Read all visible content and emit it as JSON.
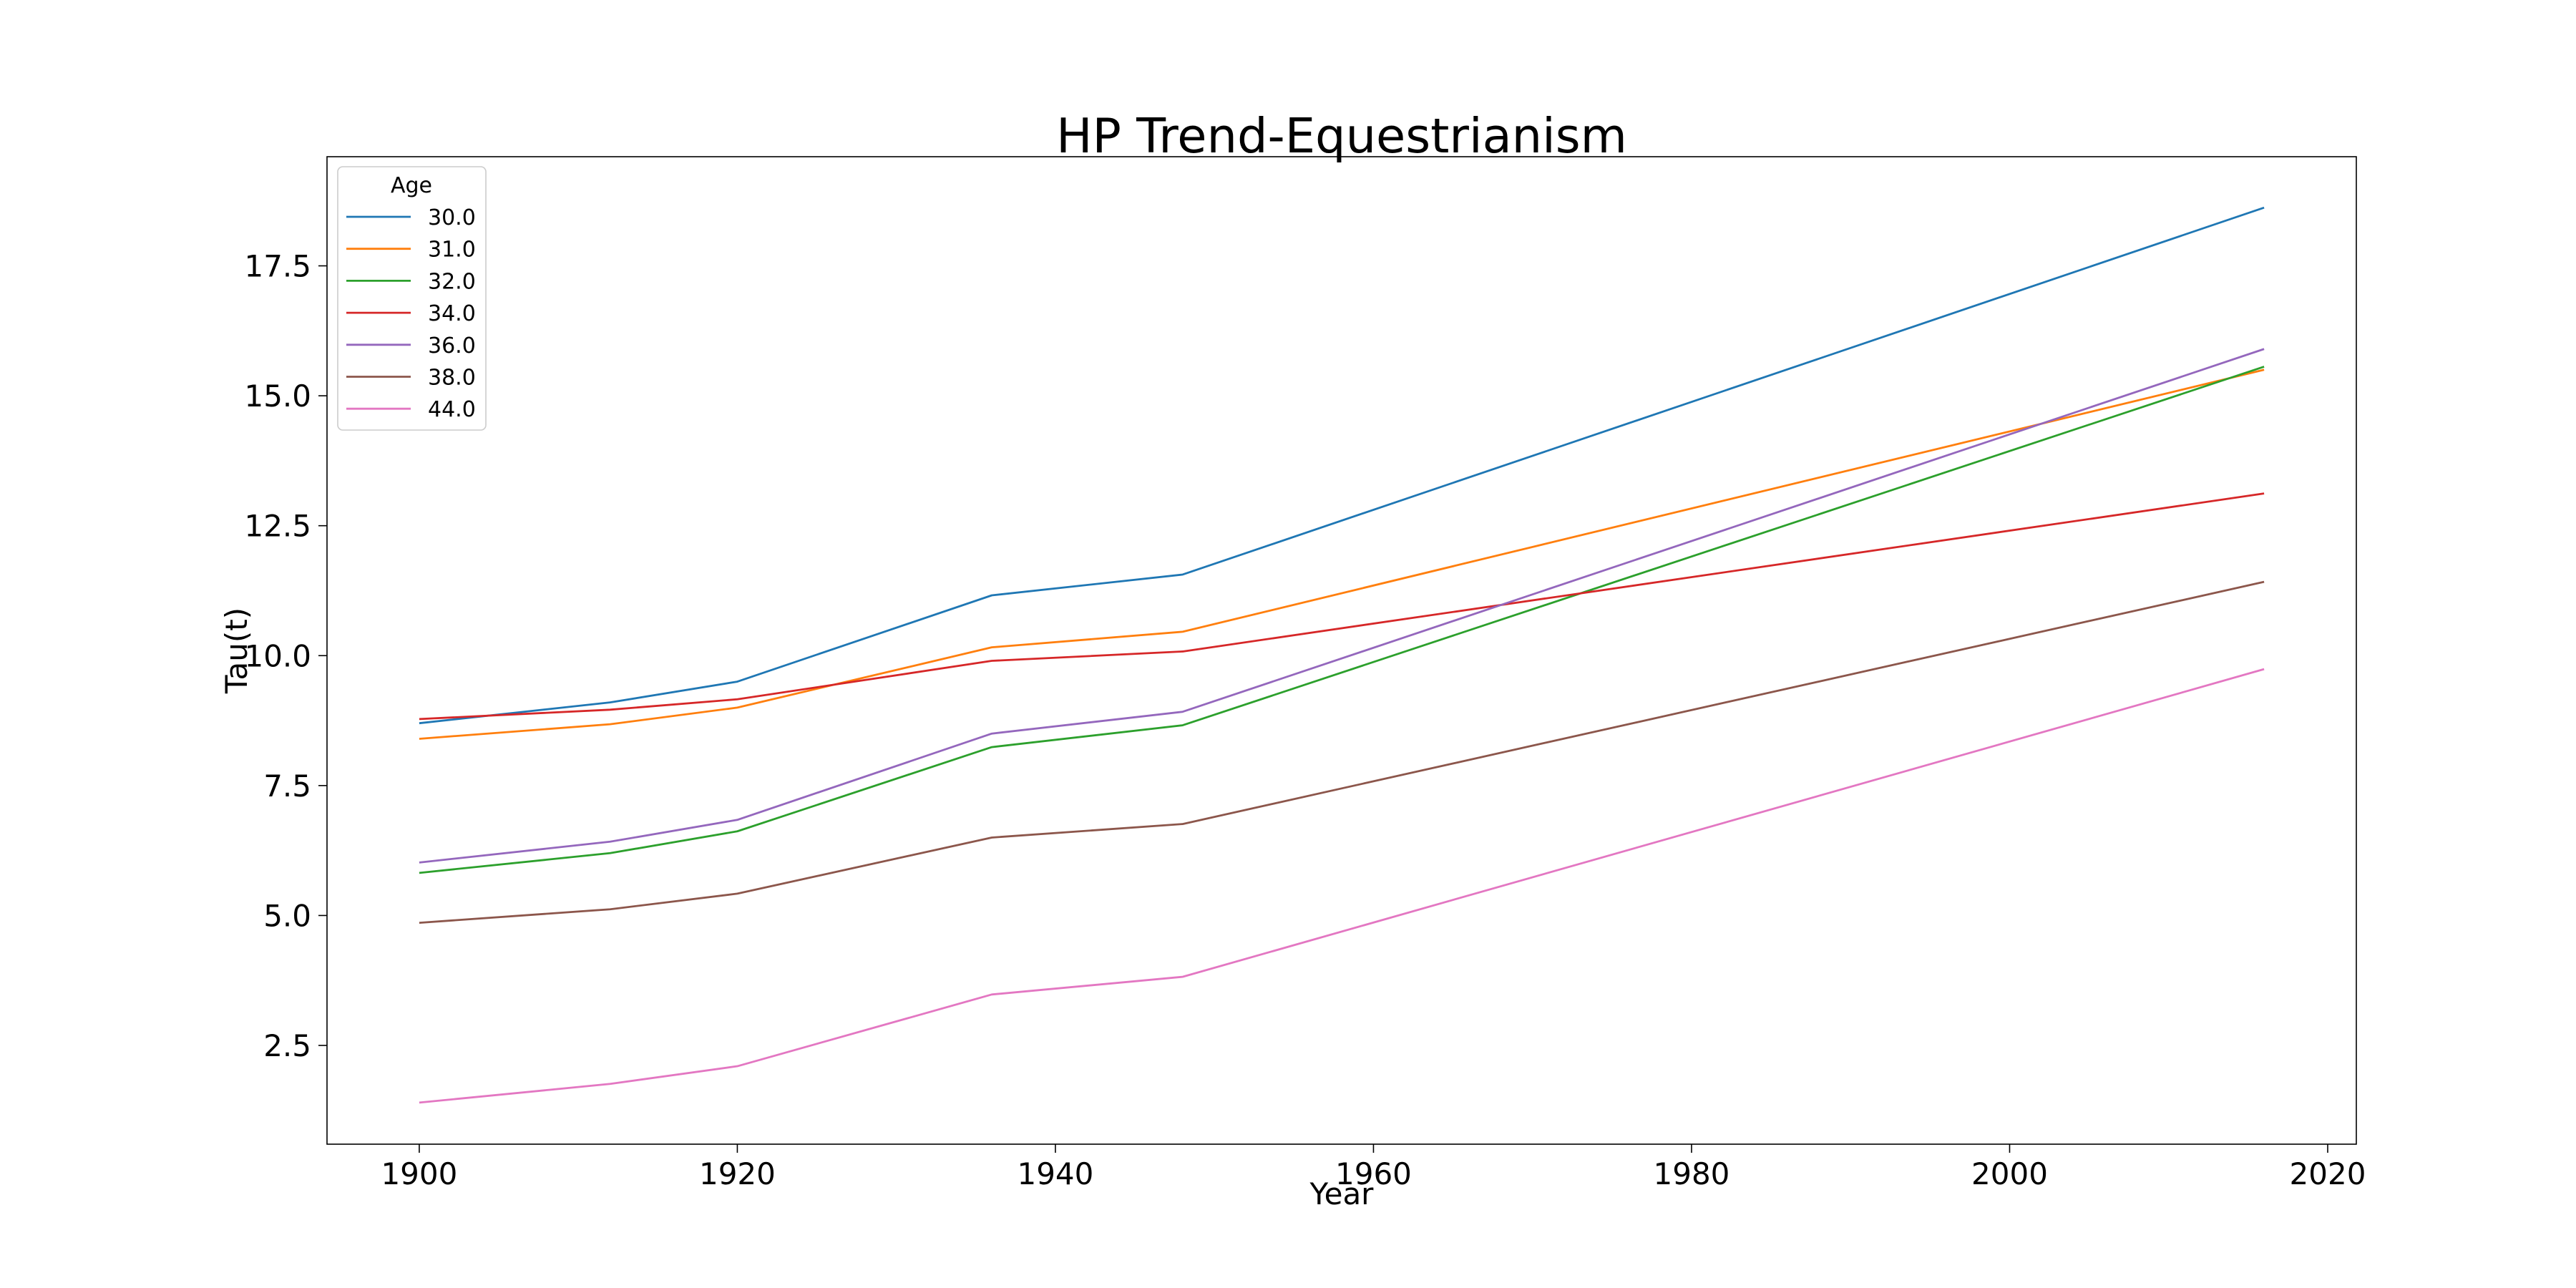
{
  "chart_data": {
    "type": "line",
    "title": "HP Trend-Equestrianism",
    "xlabel": "Year",
    "ylabel": "Tau(t)",
    "xlim": [
      1894.2,
      2021.8
    ],
    "ylim": [
      0.6,
      19.6
    ],
    "xticks": [
      1900,
      1920,
      1940,
      1960,
      1980,
      2000,
      2020
    ],
    "yticks": [
      2.5,
      5.0,
      7.5,
      10.0,
      12.5,
      15.0,
      17.5
    ],
    "xtick_labels": [
      "1900",
      "1920",
      "1940",
      "1960",
      "1980",
      "2000",
      "2020"
    ],
    "ytick_labels": [
      "2.5",
      "5.0",
      "7.5",
      "10.0",
      "12.5",
      "15.0",
      "17.5"
    ],
    "grid": false,
    "legend": {
      "title": "Age",
      "placement": "upper-left"
    },
    "x": [
      1900,
      1912,
      1920,
      1936,
      1948,
      2016
    ],
    "series": [
      {
        "name": "30.0",
        "color": "#1f77b4",
        "values": [
          8.7,
          9.1,
          9.5,
          11.16,
          11.56,
          18.62
        ]
      },
      {
        "name": "31.0",
        "color": "#ff7f0e",
        "values": [
          8.4,
          8.68,
          9.0,
          10.16,
          10.46,
          15.5
        ]
      },
      {
        "name": "32.0",
        "color": "#2ca02c",
        "values": [
          5.82,
          6.2,
          6.62,
          8.24,
          8.66,
          15.56
        ]
      },
      {
        "name": "34.0",
        "color": "#d62728",
        "values": [
          8.78,
          8.96,
          9.16,
          9.9,
          10.08,
          13.12
        ]
      },
      {
        "name": "36.0",
        "color": "#9467bd",
        "values": [
          6.02,
          6.42,
          6.84,
          8.5,
          8.92,
          15.9
        ]
      },
      {
        "name": "38.0",
        "color": "#8c564b",
        "values": [
          4.86,
          5.12,
          5.42,
          6.5,
          6.76,
          11.42
        ]
      },
      {
        "name": "44.0",
        "color": "#e377c2",
        "values": [
          1.4,
          1.76,
          2.1,
          3.48,
          3.82,
          9.74
        ]
      }
    ]
  }
}
